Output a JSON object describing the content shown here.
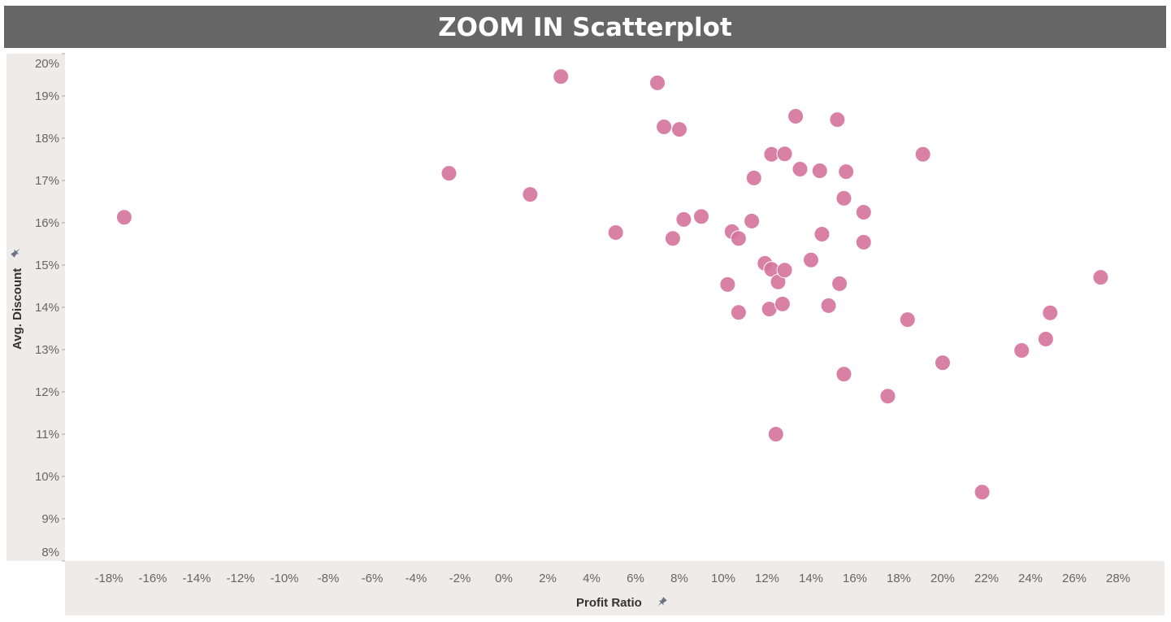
{
  "title": "ZOOM IN Scatterplot",
  "chart_data": {
    "type": "scatter",
    "title": "ZOOM IN Scatterplot",
    "xlabel": "Profit Ratio",
    "ylabel": "Avg. Discount",
    "xlim": [
      -19.1,
      29.3
    ],
    "ylim": [
      7.9,
      20.2
    ],
    "x_ticks": [
      -18,
      -16,
      -14,
      -12,
      -10,
      -8,
      -6,
      -4,
      -2,
      0,
      2,
      4,
      6,
      8,
      10,
      12,
      14,
      16,
      18,
      20,
      22,
      24,
      26,
      28
    ],
    "y_ticks": [
      8,
      9,
      10,
      11,
      12,
      13,
      14,
      15,
      16,
      17,
      18,
      19,
      20
    ],
    "tick_format": "percent",
    "grid": false,
    "color": "#d4739a",
    "points": [
      [
        -17.3,
        16.13
      ],
      [
        -2.5,
        17.17
      ],
      [
        1.2,
        16.67
      ],
      [
        2.6,
        19.46
      ],
      [
        5.1,
        15.77
      ],
      [
        7.0,
        19.31
      ],
      [
        7.3,
        18.27
      ],
      [
        8.0,
        18.21
      ],
      [
        7.7,
        15.63
      ],
      [
        8.2,
        16.08
      ],
      [
        9.0,
        16.15
      ],
      [
        10.2,
        14.54
      ],
      [
        10.4,
        15.79
      ],
      [
        10.7,
        15.63
      ],
      [
        10.7,
        13.88
      ],
      [
        11.3,
        16.04
      ],
      [
        11.4,
        17.06
      ],
      [
        11.9,
        15.04
      ],
      [
        12.1,
        13.96
      ],
      [
        12.2,
        14.9
      ],
      [
        12.2,
        17.62
      ],
      [
        12.4,
        11.0
      ],
      [
        12.5,
        14.6
      ],
      [
        12.7,
        14.08
      ],
      [
        12.8,
        14.88
      ],
      [
        12.8,
        17.63
      ],
      [
        13.3,
        18.52
      ],
      [
        13.5,
        17.27
      ],
      [
        14.0,
        15.12
      ],
      [
        14.4,
        17.23
      ],
      [
        14.5,
        15.73
      ],
      [
        14.8,
        14.04
      ],
      [
        15.2,
        18.44
      ],
      [
        15.3,
        14.56
      ],
      [
        15.5,
        16.58
      ],
      [
        15.5,
        12.42
      ],
      [
        15.6,
        17.21
      ],
      [
        16.4,
        15.54
      ],
      [
        16.4,
        16.25
      ],
      [
        17.5,
        11.9
      ],
      [
        18.4,
        13.71
      ],
      [
        19.1,
        17.62
      ],
      [
        20.0,
        12.69
      ],
      [
        21.8,
        9.63
      ],
      [
        23.6,
        12.98
      ],
      [
        24.7,
        13.25
      ],
      [
        24.9,
        13.87
      ],
      [
        27.2,
        14.71
      ]
    ]
  }
}
